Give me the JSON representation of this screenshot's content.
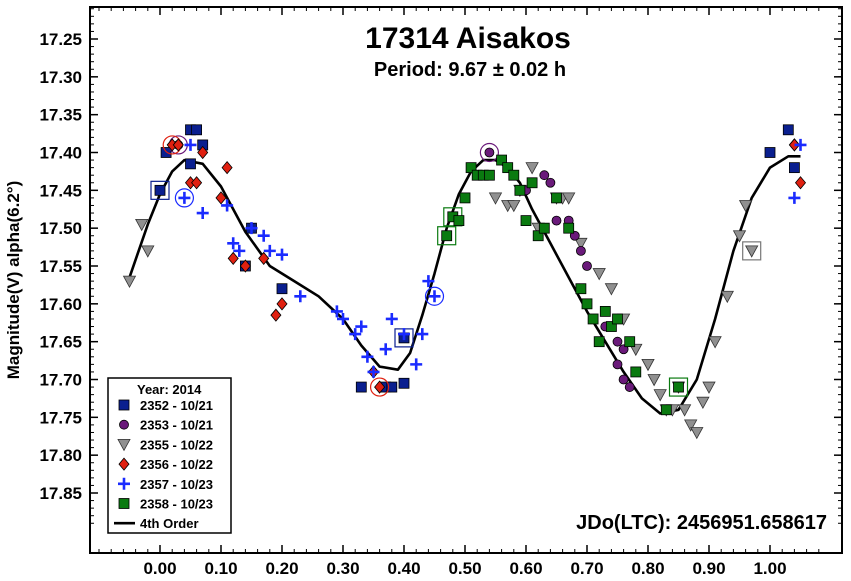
{
  "chart_data": {
    "type": "scatter",
    "title": "17314 Aisakos",
    "subtitle": "Period: 9.67 ± 0.02 h",
    "ylabel": "Magnitude(V) alpha(6.2°)",
    "xlabel": "",
    "annotation": "JDo(LTC): 2456951.658617",
    "xlim": [
      -0.11,
      1.09
    ],
    "ylim": [
      17.195,
      17.93
    ],
    "y_inverted": true,
    "x_ticks": [
      "0.00",
      "0.10",
      "0.20",
      "0.30",
      "0.40",
      "0.50",
      "0.60",
      "0.70",
      "0.80",
      "0.90",
      "1.00"
    ],
    "y_ticks": [
      "17.25",
      "17.30",
      "17.35",
      "17.40",
      "17.45",
      "17.50",
      "17.55",
      "17.60",
      "17.65",
      "17.70",
      "17.75",
      "17.80",
      "17.85"
    ],
    "grid": false,
    "legend": {
      "position": "bottom-left",
      "title": "Year: 2014",
      "entries": [
        "2352 - 10/21",
        "2353 - 10/21",
        "2355 - 10/22",
        "2356 - 10/22",
        "2357 - 10/23",
        "2358 - 10/23",
        "4th Order"
      ]
    },
    "series": [
      {
        "name": "2352 - 10/21",
        "marker": "square",
        "color": "#0a1f8f",
        "x": [
          0.01,
          0.05,
          0.06,
          0.07,
          0.15,
          0.14,
          0.2,
          0.33,
          0.37,
          0.38,
          0.4,
          0.4,
          1.0,
          1.03,
          1.04,
          0.0,
          0.05
        ],
        "y": [
          17.4,
          17.37,
          17.37,
          17.39,
          17.5,
          17.55,
          17.58,
          17.71,
          17.71,
          17.71,
          17.705,
          17.645,
          17.4,
          17.37,
          17.42,
          17.45,
          17.415
        ],
        "circled": [
          0,
          0,
          0,
          0,
          0,
          0,
          0,
          0,
          0,
          0,
          0,
          1,
          0,
          0,
          0,
          1,
          0
        ]
      },
      {
        "name": "2353 - 10/21",
        "marker": "circle",
        "color": "#6a1a7a",
        "x": [
          0.54,
          0.57,
          0.6,
          0.63,
          0.64,
          0.65,
          0.67,
          0.68,
          0.69,
          0.7,
          0.73,
          0.75,
          0.75,
          0.76,
          0.76,
          0.77,
          0.03
        ],
        "y": [
          17.4,
          17.42,
          17.45,
          17.43,
          17.44,
          17.49,
          17.49,
          17.51,
          17.53,
          17.55,
          17.63,
          17.65,
          17.68,
          17.66,
          17.7,
          17.71,
          17.39
        ],
        "circled": [
          1,
          0,
          0,
          0,
          0,
          0,
          0,
          0,
          0,
          0,
          0,
          0,
          0,
          0,
          0,
          0,
          1
        ]
      },
      {
        "name": "2355 - 10/22",
        "marker": "triangle",
        "color": "#909090",
        "x": [
          -0.05,
          -0.03,
          -0.02,
          0.55,
          0.57,
          0.58,
          0.59,
          0.61,
          0.62,
          0.65,
          0.66,
          0.67,
          0.69,
          0.72,
          0.74,
          0.76,
          0.78,
          0.8,
          0.81,
          0.82,
          0.83,
          0.84,
          0.85,
          0.86,
          0.87,
          0.88,
          0.89,
          0.9,
          0.91,
          0.93,
          0.95,
          0.96,
          0.97
        ],
        "y": [
          17.57,
          17.495,
          17.53,
          17.46,
          17.47,
          17.47,
          17.45,
          17.42,
          17.5,
          17.46,
          17.46,
          17.46,
          17.52,
          17.56,
          17.58,
          17.62,
          17.66,
          17.68,
          17.7,
          17.72,
          17.74,
          17.74,
          17.71,
          17.74,
          17.76,
          17.77,
          17.73,
          17.71,
          17.65,
          17.59,
          17.51,
          17.47,
          17.53
        ],
        "circled": [
          0,
          0,
          0,
          0,
          0,
          0,
          0,
          0,
          0,
          0,
          0,
          0,
          0,
          0,
          0,
          0,
          0,
          0,
          0,
          0,
          0,
          0,
          0,
          0,
          0,
          0,
          0,
          0,
          0,
          0,
          0,
          0,
          1
        ]
      },
      {
        "name": "2356 - 10/22",
        "marker": "diamond",
        "color": "#e02010",
        "x": [
          0.02,
          0.03,
          0.05,
          0.06,
          0.07,
          0.1,
          0.11,
          0.12,
          0.14,
          0.17,
          0.19,
          0.2,
          0.35,
          0.36,
          1.04,
          1.05,
          1.04
        ],
        "y": [
          17.39,
          17.39,
          17.44,
          17.44,
          17.4,
          17.46,
          17.42,
          17.54,
          17.55,
          17.54,
          17.615,
          17.6,
          17.69,
          17.71,
          17.39,
          17.44,
          17.39
        ],
        "circled": [
          1,
          0,
          0,
          0,
          0,
          0,
          0,
          0,
          0,
          0,
          0,
          0,
          0,
          1,
          0,
          0,
          0
        ]
      },
      {
        "name": "2357 - 10/23",
        "marker": "plus",
        "color": "#1a2bff",
        "x": [
          0.04,
          0.05,
          0.07,
          0.11,
          0.12,
          0.13,
          0.15,
          0.17,
          0.18,
          0.2,
          0.23,
          0.29,
          0.3,
          0.32,
          0.33,
          0.34,
          0.35,
          0.37,
          0.38,
          0.4,
          0.42,
          0.43,
          0.44,
          0.45,
          1.04,
          1.05
        ],
        "y": [
          17.46,
          17.39,
          17.48,
          17.47,
          17.52,
          17.53,
          17.5,
          17.51,
          17.53,
          17.535,
          17.59,
          17.61,
          17.62,
          17.64,
          17.63,
          17.67,
          17.69,
          17.66,
          17.62,
          17.64,
          17.68,
          17.64,
          17.57,
          17.59,
          17.46,
          17.39
        ],
        "circled": [
          1,
          0,
          0,
          0,
          0,
          0,
          0,
          0,
          0,
          0,
          0,
          0,
          0,
          0,
          0,
          0,
          0,
          0,
          0,
          0,
          0,
          0,
          0,
          1,
          0,
          0
        ]
      },
      {
        "name": "2358 - 10/23",
        "marker": "square",
        "color": "#0a7a10",
        "x": [
          0.47,
          0.48,
          0.49,
          0.5,
          0.51,
          0.52,
          0.53,
          0.54,
          0.56,
          0.57,
          0.58,
          0.59,
          0.6,
          0.61,
          0.62,
          0.63,
          0.65,
          0.67,
          0.69,
          0.7,
          0.71,
          0.72,
          0.73,
          0.74,
          0.75,
          0.77,
          0.78,
          0.83,
          0.85
        ],
        "y": [
          17.51,
          17.485,
          17.49,
          17.46,
          17.42,
          17.43,
          17.43,
          17.43,
          17.41,
          17.42,
          17.43,
          17.45,
          17.49,
          17.44,
          17.51,
          17.5,
          17.46,
          17.5,
          17.58,
          17.6,
          17.62,
          17.65,
          17.61,
          17.63,
          17.62,
          17.65,
          17.69,
          17.74,
          17.71
        ],
        "circled": [
          1,
          1,
          0,
          0,
          0,
          0,
          0,
          0,
          0,
          0,
          0,
          0,
          0,
          0,
          0,
          0,
          0,
          0,
          0,
          0,
          0,
          0,
          0,
          0,
          0,
          0,
          0,
          0,
          1
        ]
      }
    ],
    "fit": {
      "name": "4th Order",
      "x": [
        -0.05,
        -0.02,
        0.0,
        0.02,
        0.04,
        0.07,
        0.1,
        0.14,
        0.18,
        0.22,
        0.26,
        0.3,
        0.33,
        0.36,
        0.39,
        0.41,
        0.43,
        0.45,
        0.47,
        0.49,
        0.51,
        0.53,
        0.55,
        0.57,
        0.59,
        0.61,
        0.64,
        0.67,
        0.7,
        0.73,
        0.76,
        0.79,
        0.82,
        0.85,
        0.88,
        0.91,
        0.94,
        0.97,
        1.0,
        1.03,
        1.05
      ],
      "y": [
        17.565,
        17.495,
        17.455,
        17.425,
        17.41,
        17.415,
        17.445,
        17.505,
        17.55,
        17.57,
        17.59,
        17.62,
        17.655,
        17.683,
        17.687,
        17.665,
        17.615,
        17.56,
        17.5,
        17.455,
        17.425,
        17.41,
        17.41,
        17.42,
        17.44,
        17.475,
        17.52,
        17.565,
        17.61,
        17.65,
        17.69,
        17.725,
        17.745,
        17.74,
        17.7,
        17.62,
        17.53,
        17.46,
        17.42,
        17.405,
        17.405
      ]
    }
  }
}
